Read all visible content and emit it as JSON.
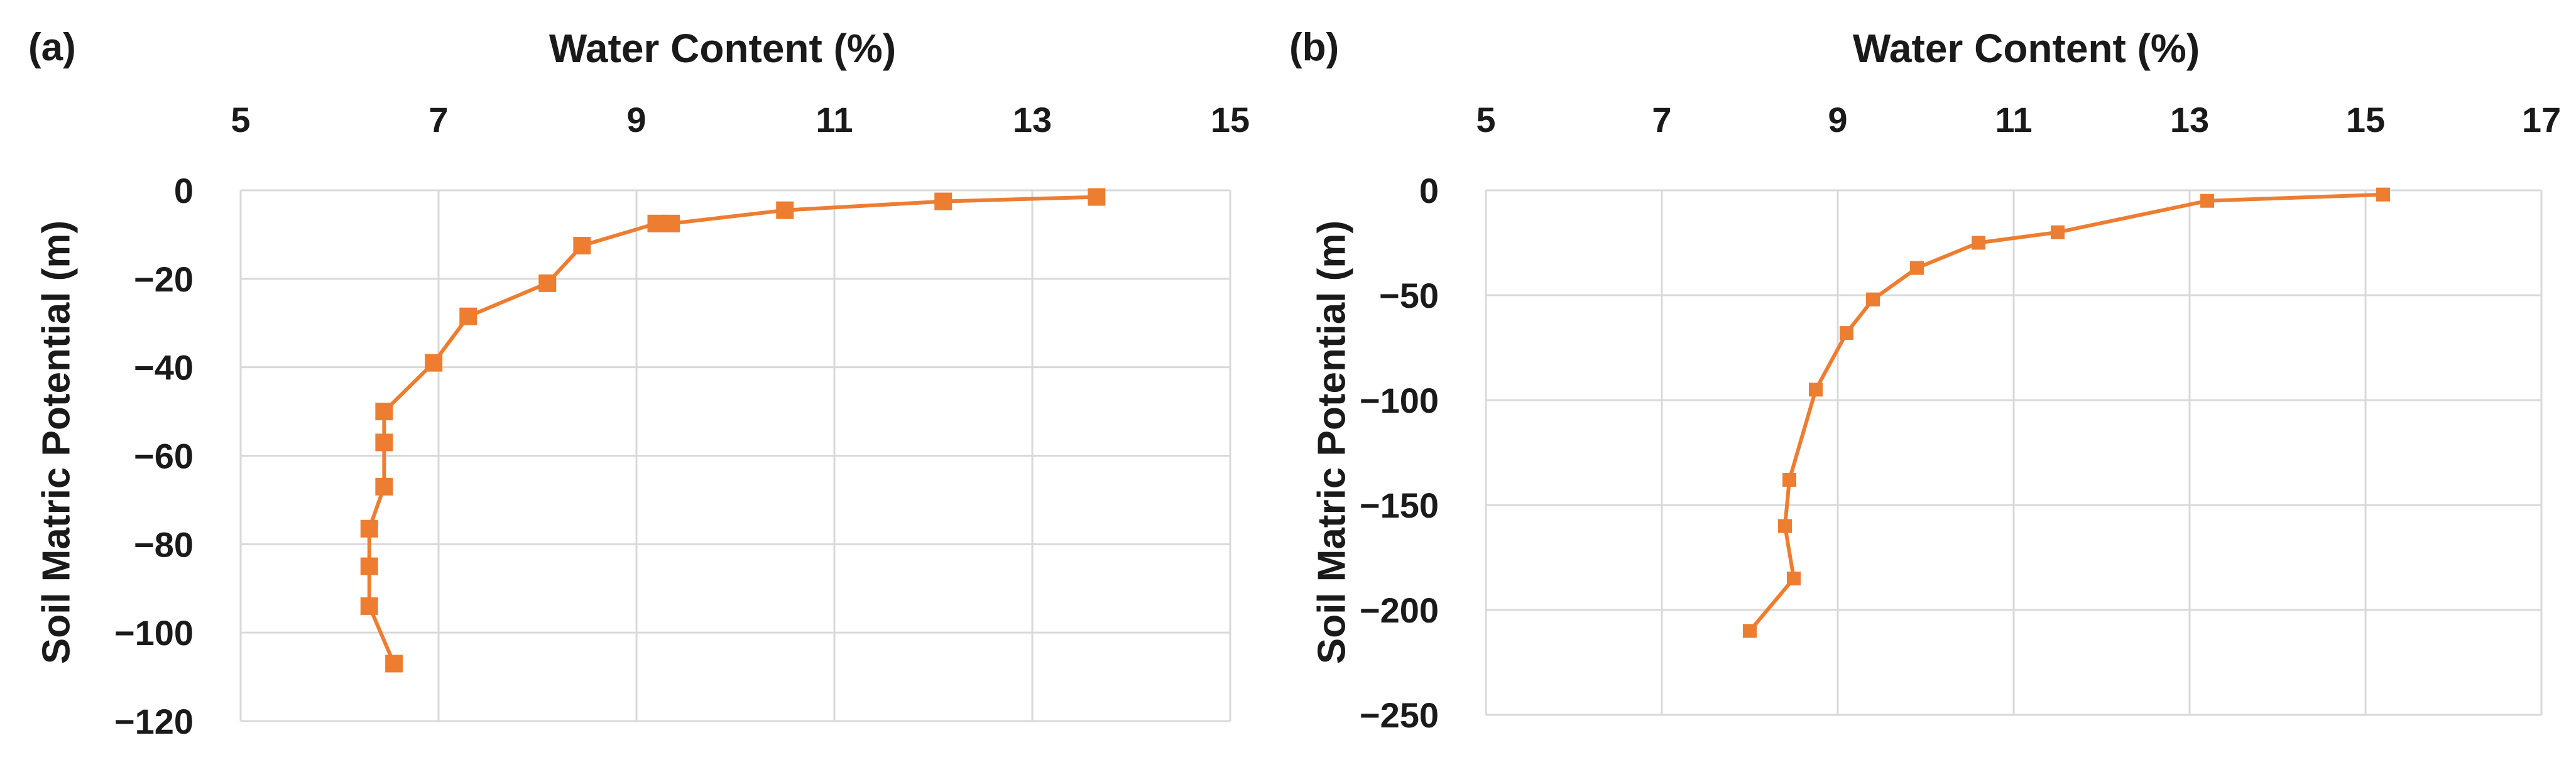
{
  "chart_data": [
    {
      "panel_label": "(a)",
      "type": "line",
      "xlabel": "Water Content (%)",
      "ylabel": "Soil Matric Potential (m)",
      "xlim": [
        5,
        15
      ],
      "ylim": [
        -120,
        0
      ],
      "xticks": [
        5,
        7,
        9,
        11,
        13,
        15
      ],
      "yticks": [
        0,
        -20,
        -40,
        -60,
        -80,
        -100,
        -120
      ],
      "x_axis_position": "top",
      "grid": true,
      "marker": "square",
      "color": "#ED7D31",
      "series": [
        {
          "points": [
            [
              13.65,
              -1.5
            ],
            [
              12.1,
              -2.5
            ],
            [
              10.5,
              -4.5
            ],
            [
              9.35,
              -7.5
            ],
            [
              9.2,
              -7.5
            ],
            [
              8.45,
              -12.5
            ],
            [
              8.1,
              -21
            ],
            [
              7.3,
              -28.5
            ],
            [
              6.95,
              -39
            ],
            [
              6.45,
              -50
            ],
            [
              6.45,
              -57
            ],
            [
              6.45,
              -67
            ],
            [
              6.3,
              -76.5
            ],
            [
              6.3,
              -85
            ],
            [
              6.3,
              -94
            ],
            [
              6.55,
              -107
            ]
          ]
        }
      ]
    },
    {
      "panel_label": "(b)",
      "type": "line",
      "xlabel": "Water Content (%)",
      "ylabel": "Soil Matric Potential (m)",
      "xlim": [
        5,
        17
      ],
      "ylim": [
        -250,
        0
      ],
      "xticks": [
        5,
        7,
        9,
        11,
        13,
        15,
        17
      ],
      "yticks": [
        0,
        -50,
        -100,
        -150,
        -200,
        -250
      ],
      "x_axis_position": "top",
      "grid": true,
      "marker": "square",
      "color": "#ED7D31",
      "series": [
        {
          "points": [
            [
              15.2,
              -2
            ],
            [
              13.2,
              -5
            ],
            [
              11.5,
              -20
            ],
            [
              10.6,
              -25
            ],
            [
              9.9,
              -37
            ],
            [
              9.4,
              -52
            ],
            [
              9.1,
              -68
            ],
            [
              8.75,
              -95
            ],
            [
              8.45,
              -138
            ],
            [
              8.4,
              -160
            ],
            [
              8.5,
              -185
            ],
            [
              8.0,
              -210
            ]
          ]
        }
      ]
    }
  ]
}
